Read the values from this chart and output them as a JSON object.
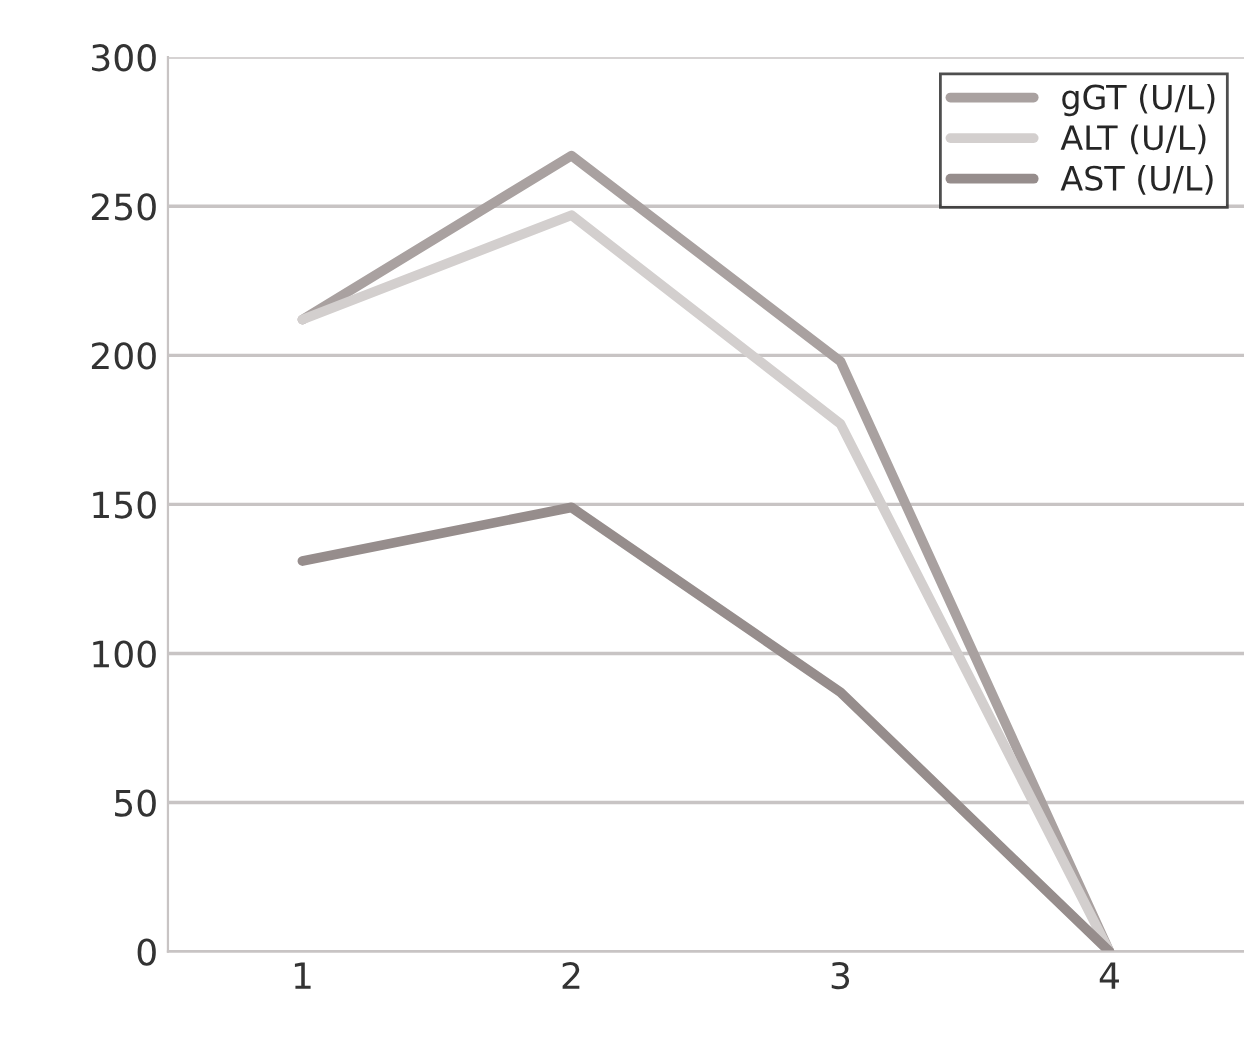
{
  "chart_data": {
    "type": "line",
    "categories": [
      "1",
      "2",
      "3",
      "4"
    ],
    "series": [
      {
        "name": "gGT (U/L)",
        "color": "#a9a1a0",
        "values": [
          212,
          267,
          198,
          0
        ]
      },
      {
        "name": "ALT (U/L)",
        "color": "#d3cfce",
        "values": [
          212,
          247,
          177,
          0
        ]
      },
      {
        "name": "AST (U/L)",
        "color": "#968d8c",
        "values": [
          131,
          149,
          87,
          0
        ]
      }
    ],
    "ylim": [
      0,
      300
    ],
    "yticks": [
      0,
      50,
      100,
      150,
      200,
      250,
      300
    ],
    "grid": "y",
    "legend": "top right",
    "marker": "none",
    "line_style": "solid"
  }
}
